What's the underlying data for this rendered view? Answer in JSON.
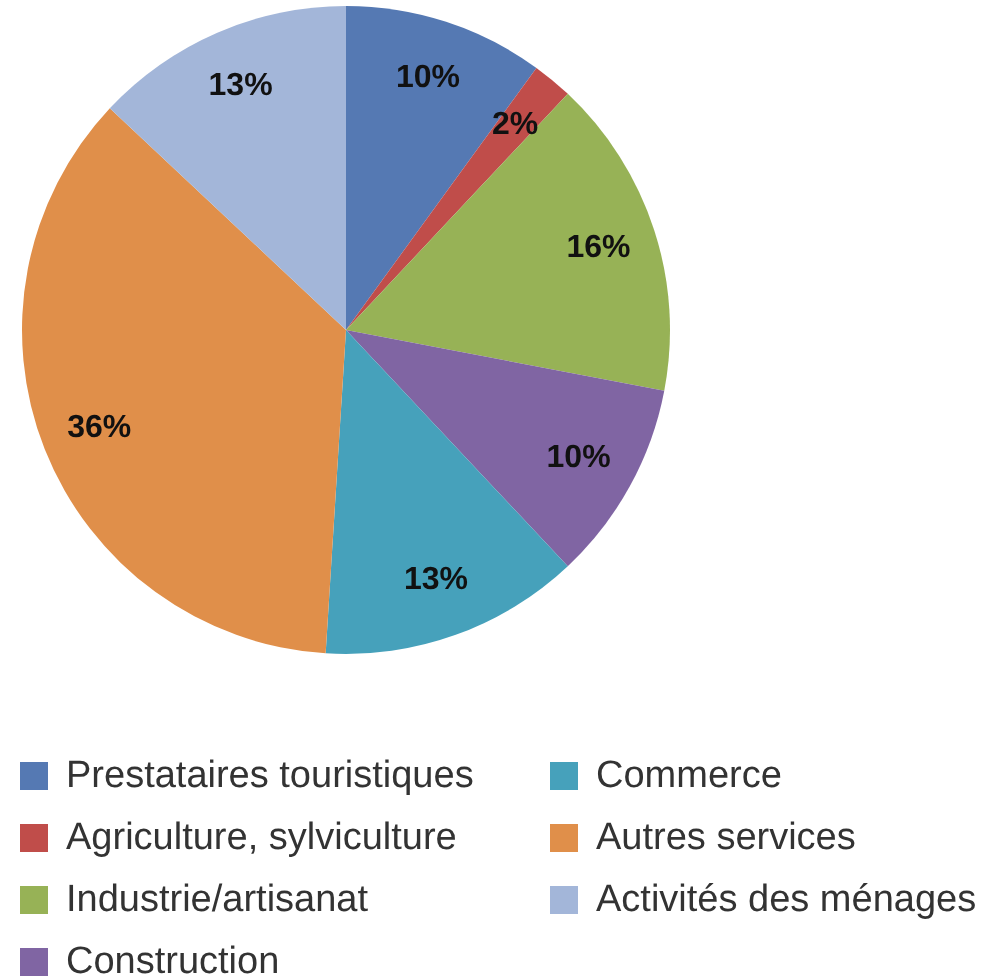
{
  "chart_data": {
    "type": "pie",
    "categories": [
      "Prestataires touristiques",
      "Agriculture, sylviculture",
      "Industrie/artisanat",
      "Construction",
      "Commerce",
      "Autres services",
      "Activités des ménages"
    ],
    "values": [
      10,
      2,
      16,
      10,
      13,
      36,
      13
    ],
    "value_labels": [
      "10%",
      "2%",
      "16%",
      "10%",
      "13%",
      "36%",
      "13%"
    ],
    "colors": [
      "#5579b3",
      "#c04d4a",
      "#97b256",
      "#8065a3",
      "#46a1bb",
      "#e08f4a",
      "#a3b6d9"
    ],
    "legend": "bottom"
  }
}
